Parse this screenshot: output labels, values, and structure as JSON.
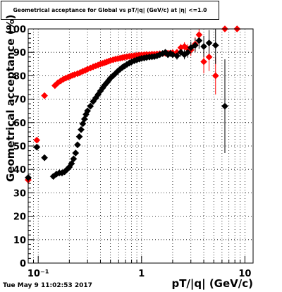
{
  "chart_data": {
    "type": "scatter",
    "title": "Geometrical acceptance for Global vs pT/|q| (GeV/c) at |η| <=1.0",
    "xlabel": "pT/|q| (GeV/c)",
    "ylabel": "Geometrical acceptance (%)",
    "xscale": "log",
    "xlim": [
      0.08,
      12
    ],
    "ylim": [
      0,
      100
    ],
    "grid": true,
    "x_ticklabels": [
      "10⁻¹",
      "1",
      "10"
    ],
    "y_ticklabels": [
      "0",
      "10",
      "20",
      "30",
      "40",
      "50",
      "60",
      "70",
      "80",
      "90",
      "100"
    ],
    "marker_style": "filled diamond with error bars",
    "series": [
      {
        "color": "#ff0000",
        "points": [
          {
            "x": 0.08,
            "y": 35.5,
            "yerr": 1.5
          },
          {
            "x": 0.097,
            "y": 52.5,
            "yerr": 1.0
          },
          {
            "x": 0.115,
            "y": 71.5,
            "yerr": 0.6
          },
          {
            "x": 0.145,
            "y": 75.8,
            "yerr": 0.5
          },
          {
            "x": 0.155,
            "y": 77.0,
            "yerr": 0.5
          },
          {
            "x": 0.165,
            "y": 77.8,
            "yerr": 0.5
          },
          {
            "x": 0.175,
            "y": 78.5,
            "yerr": 0.5
          },
          {
            "x": 0.185,
            "y": 79.0,
            "yerr": 0.5
          },
          {
            "x": 0.195,
            "y": 79.4,
            "yerr": 0.5
          },
          {
            "x": 0.205,
            "y": 79.8,
            "yerr": 0.5
          },
          {
            "x": 0.215,
            "y": 80.2,
            "yerr": 0.5
          },
          {
            "x": 0.225,
            "y": 80.5,
            "yerr": 0.5
          },
          {
            "x": 0.24,
            "y": 80.9,
            "yerr": 0.5
          },
          {
            "x": 0.255,
            "y": 81.4,
            "yerr": 0.5
          },
          {
            "x": 0.27,
            "y": 81.9,
            "yerr": 0.5
          },
          {
            "x": 0.285,
            "y": 82.3,
            "yerr": 0.5
          },
          {
            "x": 0.3,
            "y": 82.8,
            "yerr": 0.5
          },
          {
            "x": 0.32,
            "y": 83.3,
            "yerr": 0.5
          },
          {
            "x": 0.34,
            "y": 83.8,
            "yerr": 0.5
          },
          {
            "x": 0.36,
            "y": 84.2,
            "yerr": 0.5
          },
          {
            "x": 0.38,
            "y": 84.6,
            "yerr": 0.5
          },
          {
            "x": 0.4,
            "y": 85.0,
            "yerr": 0.5
          },
          {
            "x": 0.42,
            "y": 85.3,
            "yerr": 0.5
          },
          {
            "x": 0.44,
            "y": 85.6,
            "yerr": 0.5
          },
          {
            "x": 0.46,
            "y": 85.9,
            "yerr": 0.5
          },
          {
            "x": 0.48,
            "y": 86.2,
            "yerr": 0.5
          },
          {
            "x": 0.5,
            "y": 86.5,
            "yerr": 0.5
          },
          {
            "x": 0.53,
            "y": 86.8,
            "yerr": 0.5
          },
          {
            "x": 0.56,
            "y": 87.1,
            "yerr": 0.5
          },
          {
            "x": 0.59,
            "y": 87.3,
            "yerr": 0.5
          },
          {
            "x": 0.62,
            "y": 87.5,
            "yerr": 0.5
          },
          {
            "x": 0.65,
            "y": 87.7,
            "yerr": 0.5
          },
          {
            "x": 0.68,
            "y": 87.9,
            "yerr": 0.5
          },
          {
            "x": 0.72,
            "y": 88.1,
            "yerr": 0.5
          },
          {
            "x": 0.76,
            "y": 88.3,
            "yerr": 0.5
          },
          {
            "x": 0.8,
            "y": 88.4,
            "yerr": 0.5
          },
          {
            "x": 0.85,
            "y": 88.6,
            "yerr": 0.5
          },
          {
            "x": 0.9,
            "y": 88.7,
            "yerr": 0.5
          },
          {
            "x": 0.95,
            "y": 88.8,
            "yerr": 0.5
          },
          {
            "x": 1.0,
            "y": 88.9,
            "yerr": 0.5
          },
          {
            "x": 1.06,
            "y": 89.0,
            "yerr": 0.6
          },
          {
            "x": 1.12,
            "y": 89.1,
            "yerr": 0.6
          },
          {
            "x": 1.19,
            "y": 89.1,
            "yerr": 0.6
          },
          {
            "x": 1.26,
            "y": 89.2,
            "yerr": 0.7
          },
          {
            "x": 1.33,
            "y": 89.2,
            "yerr": 0.7
          },
          {
            "x": 1.41,
            "y": 89.3,
            "yerr": 0.8
          },
          {
            "x": 1.5,
            "y": 89.4,
            "yerr": 0.8
          },
          {
            "x": 1.6,
            "y": 89.5,
            "yerr": 0.9
          },
          {
            "x": 1.7,
            "y": 89.6,
            "yerr": 1.0
          },
          {
            "x": 1.8,
            "y": 89.6,
            "yerr": 1.0
          },
          {
            "x": 1.9,
            "y": 89.7,
            "yerr": 1.1
          },
          {
            "x": 2.0,
            "y": 89.8,
            "yerr": 1.2
          },
          {
            "x": 2.2,
            "y": 90.0,
            "yerr": 1.4
          },
          {
            "x": 2.4,
            "y": 92.0,
            "yerr": 1.6
          },
          {
            "x": 2.6,
            "y": 92.5,
            "yerr": 1.8
          },
          {
            "x": 2.8,
            "y": 91.5,
            "yerr": 2.0
          },
          {
            "x": 3.0,
            "y": 91.0,
            "yerr": 2.5
          },
          {
            "x": 3.3,
            "y": 93.5,
            "yerr": 3.0
          },
          {
            "x": 3.6,
            "y": 97.5,
            "yerr": 3.0
          },
          {
            "x": 4.0,
            "y": 86.0,
            "yerr": 5.0
          },
          {
            "x": 4.5,
            "y": 88.0,
            "yerr": 6.0
          },
          {
            "x": 5.2,
            "y": 80.0,
            "yerr": 8.0
          },
          {
            "x": 6.4,
            "y": 100.0,
            "yerr": 0.0
          },
          {
            "x": 8.4,
            "y": 100.0,
            "yerr": 0.0
          }
        ]
      },
      {
        "color": "#000000",
        "points": [
          {
            "x": 0.08,
            "y": 36.5,
            "yerr": 1.5
          },
          {
            "x": 0.097,
            "y": 49.5,
            "yerr": 1.0
          },
          {
            "x": 0.115,
            "y": 45.0,
            "yerr": 0.8
          },
          {
            "x": 0.14,
            "y": 37.0,
            "yerr": 0.6
          },
          {
            "x": 0.15,
            "y": 38.0,
            "yerr": 0.6
          },
          {
            "x": 0.16,
            "y": 38.5,
            "yerr": 0.6
          },
          {
            "x": 0.17,
            "y": 38.5,
            "yerr": 0.6
          },
          {
            "x": 0.18,
            "y": 39.0,
            "yerr": 0.6
          },
          {
            "x": 0.19,
            "y": 40.0,
            "yerr": 0.6
          },
          {
            "x": 0.2,
            "y": 41.0,
            "yerr": 0.6
          },
          {
            "x": 0.21,
            "y": 42.5,
            "yerr": 0.6
          },
          {
            "x": 0.22,
            "y": 44.5,
            "yerr": 0.6
          },
          {
            "x": 0.23,
            "y": 47.0,
            "yerr": 0.6
          },
          {
            "x": 0.24,
            "y": 50.5,
            "yerr": 0.6
          },
          {
            "x": 0.25,
            "y": 54.0,
            "yerr": 0.6
          },
          {
            "x": 0.26,
            "y": 57.0,
            "yerr": 0.6
          },
          {
            "x": 0.27,
            "y": 59.5,
            "yerr": 0.6
          },
          {
            "x": 0.28,
            "y": 61.5,
            "yerr": 0.6
          },
          {
            "x": 0.29,
            "y": 63.5,
            "yerr": 0.6
          },
          {
            "x": 0.3,
            "y": 65.0,
            "yerr": 0.6
          },
          {
            "x": 0.32,
            "y": 67.0,
            "yerr": 0.6
          },
          {
            "x": 0.34,
            "y": 69.0,
            "yerr": 0.6
          },
          {
            "x": 0.36,
            "y": 70.5,
            "yerr": 0.6
          },
          {
            "x": 0.38,
            "y": 72.0,
            "yerr": 0.6
          },
          {
            "x": 0.4,
            "y": 73.5,
            "yerr": 0.6
          },
          {
            "x": 0.42,
            "y": 74.8,
            "yerr": 0.6
          },
          {
            "x": 0.44,
            "y": 76.0,
            "yerr": 0.6
          },
          {
            "x": 0.46,
            "y": 77.0,
            "yerr": 0.6
          },
          {
            "x": 0.48,
            "y": 78.0,
            "yerr": 0.6
          },
          {
            "x": 0.5,
            "y": 79.0,
            "yerr": 0.6
          },
          {
            "x": 0.53,
            "y": 80.0,
            "yerr": 0.6
          },
          {
            "x": 0.56,
            "y": 81.0,
            "yerr": 0.6
          },
          {
            "x": 0.59,
            "y": 82.0,
            "yerr": 0.6
          },
          {
            "x": 0.62,
            "y": 82.8,
            "yerr": 0.6
          },
          {
            "x": 0.65,
            "y": 83.5,
            "yerr": 0.6
          },
          {
            "x": 0.68,
            "y": 84.1,
            "yerr": 0.6
          },
          {
            "x": 0.72,
            "y": 84.8,
            "yerr": 0.6
          },
          {
            "x": 0.76,
            "y": 85.4,
            "yerr": 0.6
          },
          {
            "x": 0.8,
            "y": 85.9,
            "yerr": 0.6
          },
          {
            "x": 0.85,
            "y": 86.4,
            "yerr": 0.6
          },
          {
            "x": 0.9,
            "y": 86.8,
            "yerr": 0.6
          },
          {
            "x": 0.95,
            "y": 87.1,
            "yerr": 0.6
          },
          {
            "x": 1.0,
            "y": 87.4,
            "yerr": 0.6
          },
          {
            "x": 1.06,
            "y": 87.6,
            "yerr": 0.6
          },
          {
            "x": 1.12,
            "y": 87.8,
            "yerr": 0.7
          },
          {
            "x": 1.19,
            "y": 88.0,
            "yerr": 0.7
          },
          {
            "x": 1.26,
            "y": 88.1,
            "yerr": 0.8
          },
          {
            "x": 1.33,
            "y": 88.2,
            "yerr": 0.8
          },
          {
            "x": 1.41,
            "y": 88.5,
            "yerr": 0.9
          },
          {
            "x": 1.5,
            "y": 89.0,
            "yerr": 1.0
          },
          {
            "x": 1.6,
            "y": 89.5,
            "yerr": 1.0
          },
          {
            "x": 1.7,
            "y": 90.0,
            "yerr": 1.1
          },
          {
            "x": 1.8,
            "y": 89.0,
            "yerr": 1.2
          },
          {
            "x": 1.9,
            "y": 89.5,
            "yerr": 1.3
          },
          {
            "x": 2.0,
            "y": 89.0,
            "yerr": 1.4
          },
          {
            "x": 2.2,
            "y": 88.5,
            "yerr": 1.6
          },
          {
            "x": 2.4,
            "y": 90.0,
            "yerr": 1.8
          },
          {
            "x": 2.6,
            "y": 89.0,
            "yerr": 2.0
          },
          {
            "x": 2.8,
            "y": 90.0,
            "yerr": 2.3
          },
          {
            "x": 3.0,
            "y": 92.0,
            "yerr": 2.6
          },
          {
            "x": 3.3,
            "y": 93.0,
            "yerr": 3.0
          },
          {
            "x": 3.6,
            "y": 95.0,
            "yerr": 3.5
          },
          {
            "x": 4.0,
            "y": 92.5,
            "yerr": 4.5
          },
          {
            "x": 4.5,
            "y": 94.0,
            "yerr": 5.5
          },
          {
            "x": 5.2,
            "y": 93.0,
            "yerr": 8.0
          },
          {
            "x": 6.4,
            "y": 67.0,
            "yerr": 20.0
          }
        ]
      }
    ]
  },
  "footer": {
    "timestamp": "Tue May  9 11:02:53 2017"
  }
}
